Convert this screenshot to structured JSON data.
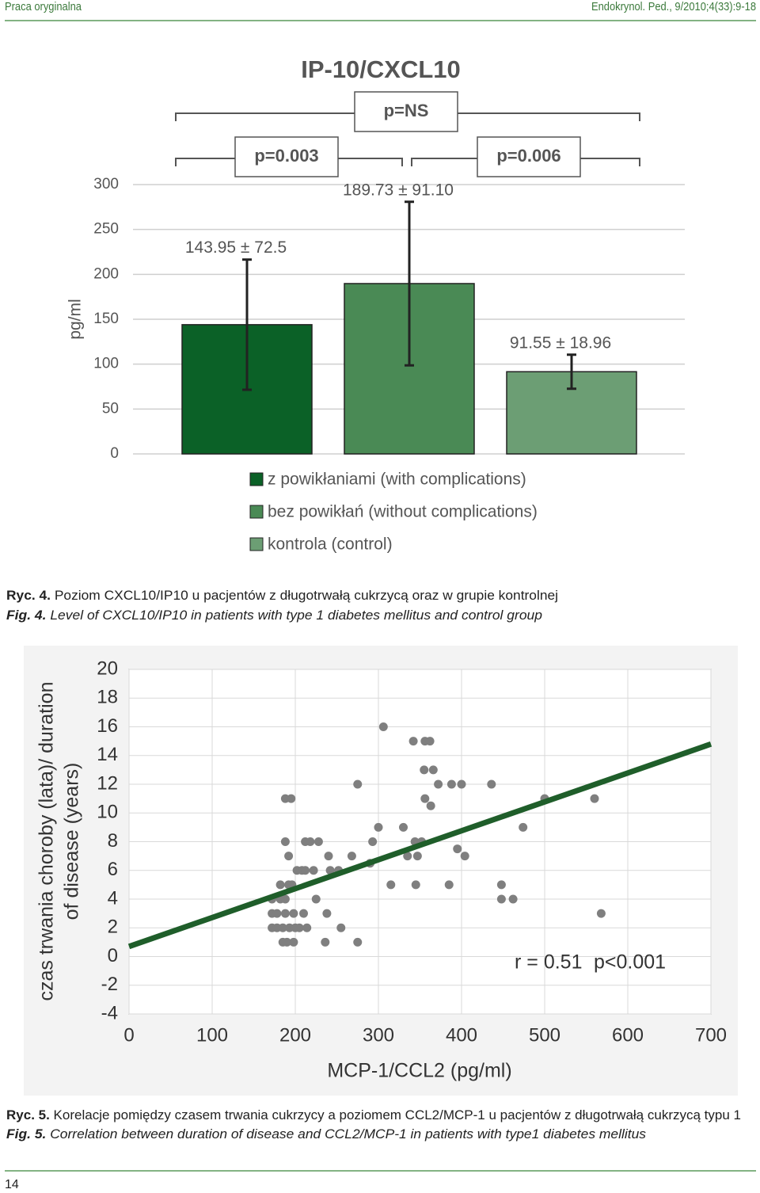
{
  "header": {
    "left": "Praca oryginalna",
    "right": "Endokrynol. Ped., 9/2010;4(33):9-18"
  },
  "chart_data": [
    {
      "type": "bar",
      "title": "IP-10/CXCL10",
      "ylabel": "pg/ml",
      "ylim": [
        0,
        300
      ],
      "yticks": [
        0,
        50,
        100,
        150,
        200,
        250,
        300
      ],
      "grid": true,
      "series": [
        {
          "name": "z powikłaniami (with complications)",
          "color": "#0b6127",
          "values": [
            143.95
          ],
          "errors": [
            72.5
          ],
          "value_labels": [
            "143.95 ± 72.5"
          ]
        },
        {
          "name": "bez powikłań (without complications)",
          "color": "#4a8a55",
          "values": [
            189.73
          ],
          "errors": [
            91.1
          ],
          "value_labels": [
            "189.73 ± 91.10"
          ]
        },
        {
          "name": "kontrola (control)",
          "color": "#6c9e74",
          "values": [
            91.55
          ],
          "errors": [
            18.96
          ],
          "value_labels": [
            "91.55 ± 18.96"
          ]
        }
      ],
      "annotations": [
        "p=0.003",
        "p=0.006",
        "p=NS"
      ]
    },
    {
      "type": "scatter",
      "xlabel": "MCP-1/CCL2 (pg/ml)",
      "ylabel": [
        "czas trwania choroby (lata)/ duration",
        "of disease (years)"
      ],
      "xlim": [
        0,
        700
      ],
      "xticks": [
        0,
        100,
        200,
        300,
        400,
        500,
        600,
        700
      ],
      "ylim": [
        -4,
        20
      ],
      "yticks": [
        -4,
        -2,
        0,
        2,
        4,
        6,
        8,
        10,
        12,
        14,
        16,
        18,
        20
      ],
      "grid": true,
      "color": "#7f7f7f",
      "x": [
        172,
        172,
        172,
        178,
        178,
        182,
        182,
        185,
        185,
        188,
        188,
        188,
        188,
        190,
        192,
        192,
        193,
        195,
        196,
        198,
        198,
        200,
        202,
        205,
        208,
        210,
        212,
        212,
        214,
        218,
        222,
        225,
        228,
        236,
        238,
        240,
        242,
        252,
        255,
        268,
        275,
        275,
        290,
        293,
        300,
        306,
        315,
        330,
        335,
        342,
        344,
        345,
        347,
        352,
        355,
        356,
        356,
        362,
        363,
        366,
        372,
        385,
        388,
        395,
        400,
        404,
        436,
        448,
        448,
        462,
        474,
        500,
        560,
        568
      ],
      "values": [
        4,
        3,
        2,
        3,
        2,
        5,
        4,
        1,
        2,
        11,
        8,
        4,
        3,
        1,
        7,
        5,
        2,
        11,
        5,
        1,
        3,
        2,
        6,
        2,
        6,
        3,
        6,
        8,
        2,
        8,
        6,
        4,
        8,
        1,
        3,
        7,
        6,
        6,
        2,
        7,
        1,
        12,
        6.5,
        8,
        9,
        16,
        5,
        9,
        7,
        15,
        8,
        5,
        7,
        8,
        13,
        15,
        11,
        15,
        10.5,
        13,
        12,
        5,
        12,
        7.5,
        12,
        7,
        12,
        5,
        4,
        4,
        9,
        11,
        11,
        3
      ],
      "trend": {
        "color": "#1f5e2a",
        "x": [
          0,
          700
        ],
        "y": [
          0.7,
          14.8
        ]
      },
      "annotations": [
        "r = 0.51",
        "p<0.001"
      ]
    }
  ],
  "captions": [
    {
      "label": "Ryc. 4.",
      "text": "Poziom CXCL10/IP10 u pacjentów z długotrwałą cukrzycą oraz w grupie kontrolnej"
    },
    {
      "label": "Fig. 4.",
      "text": "Level of CXCL10/IP10 in patients with type 1 diabetes mellitus and control group"
    },
    {
      "label": "Ryc. 5.",
      "text": "Korelacje pomiędzy czasem trwania cukrzycy a poziomem CCL2/MCP-1 u pacjentów z długotrwałą cukrzycą typu 1"
    },
    {
      "label": "Fig. 5.",
      "text": "Correlation between duration of disease and CCL2/MCP-1 in patients with type1 diabetes mellitus"
    }
  ],
  "footer": {
    "page": "14"
  }
}
